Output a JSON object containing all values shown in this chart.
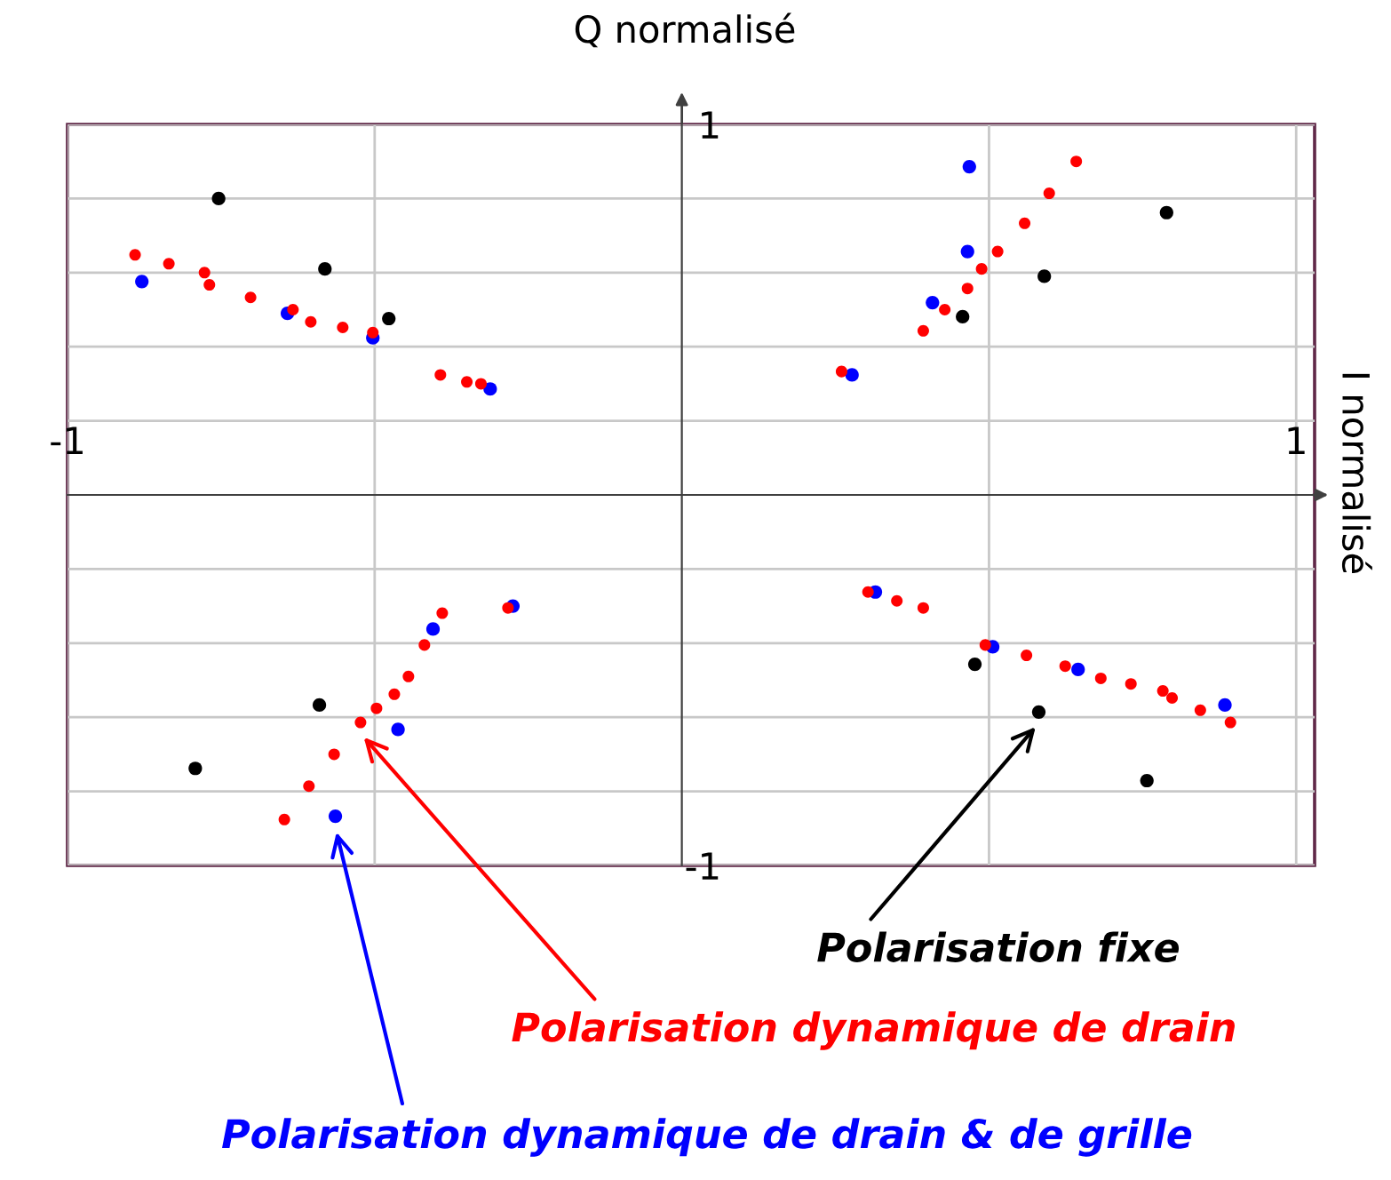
{
  "chart_data": {
    "type": "scatter",
    "annotations": [
      "I normalisé"
    ],
    "ylabel": "Q normalisé",
    "xlim": [
      -1,
      1.03
    ],
    "ylim": [
      -1,
      1
    ],
    "xticks": [
      -1,
      {
        "value": -0.5,
        "label": null
      },
      {
        "value": 0.5,
        "label": null
      },
      1
    ],
    "yticks": [
      -1,
      {
        "value": -0.8,
        "label": null
      },
      {
        "value": -0.6,
        "label": null
      },
      {
        "value": -0.4,
        "label": null
      },
      {
        "value": -0.2,
        "label": null
      },
      {
        "value": 0.2,
        "label": null
      },
      {
        "value": 0.4,
        "label": null
      },
      {
        "value": 0.6,
        "label": null
      },
      {
        "value": 0.8,
        "label": null
      },
      1
    ],
    "grid": true,
    "marker": "circle",
    "series": [
      {
        "name": "Polarisation fixe",
        "color": "#000000",
        "x": [
          -0.754,
          -0.581,
          -0.477,
          -0.792,
          -0.59,
          0.789,
          0.59,
          0.457,
          0.477,
          0.581,
          0.757
        ],
        "values": [
          0.8,
          0.61,
          0.476,
          -0.738,
          -0.567,
          0.762,
          0.59,
          0.481,
          -0.457,
          -0.586,
          -0.771
        ]
      },
      {
        "name": "Polarisation dynamique de drain",
        "color": "#ff0000",
        "x": [
          -0.89,
          -0.835,
          -0.777,
          -0.769,
          -0.702,
          -0.633,
          -0.604,
          -0.552,
          -0.503,
          -0.393,
          -0.35,
          -0.327,
          0.393,
          0.428,
          0.465,
          0.488,
          0.514,
          0.558,
          0.598,
          0.642,
          0.26,
          0.303,
          0.35,
          0.393,
          0.494,
          0.561,
          0.624,
          0.682,
          0.731,
          0.783,
          0.798,
          0.844,
          0.893,
          -0.647,
          -0.607,
          -0.566,
          -0.523,
          -0.497,
          -0.468,
          -0.445,
          -0.419,
          -0.39,
          -0.283
        ],
        "values": [
          0.648,
          0.624,
          0.6,
          0.567,
          0.533,
          0.5,
          0.467,
          0.452,
          0.438,
          0.324,
          0.305,
          0.3,
          0.443,
          0.5,
          0.557,
          0.61,
          0.657,
          0.733,
          0.814,
          0.9,
          0.333,
          -0.262,
          -0.286,
          -0.305,
          -0.405,
          -0.433,
          -0.462,
          -0.495,
          -0.51,
          -0.529,
          -0.548,
          -0.581,
          -0.614,
          -0.876,
          -0.786,
          -0.7,
          -0.614,
          -0.576,
          -0.538,
          -0.49,
          -0.405,
          -0.319,
          -0.305
        ]
      },
      {
        "name": "Polarisation dynamique de drain & de grille",
        "color": "#0000ff",
        "x": [
          -0.879,
          -0.642,
          -0.503,
          -0.312,
          -0.275,
          -0.405,
          -0.462,
          -0.564,
          0.468,
          0.465,
          0.408,
          0.277,
          0.315,
          0.506,
          0.645,
          0.884
        ],
        "values": [
          0.576,
          0.49,
          0.424,
          0.286,
          -0.3,
          -0.362,
          -0.633,
          -0.867,
          0.886,
          0.657,
          0.519,
          0.324,
          -0.262,
          -0.41,
          -0.471,
          -0.567
        ]
      }
    ]
  }
}
